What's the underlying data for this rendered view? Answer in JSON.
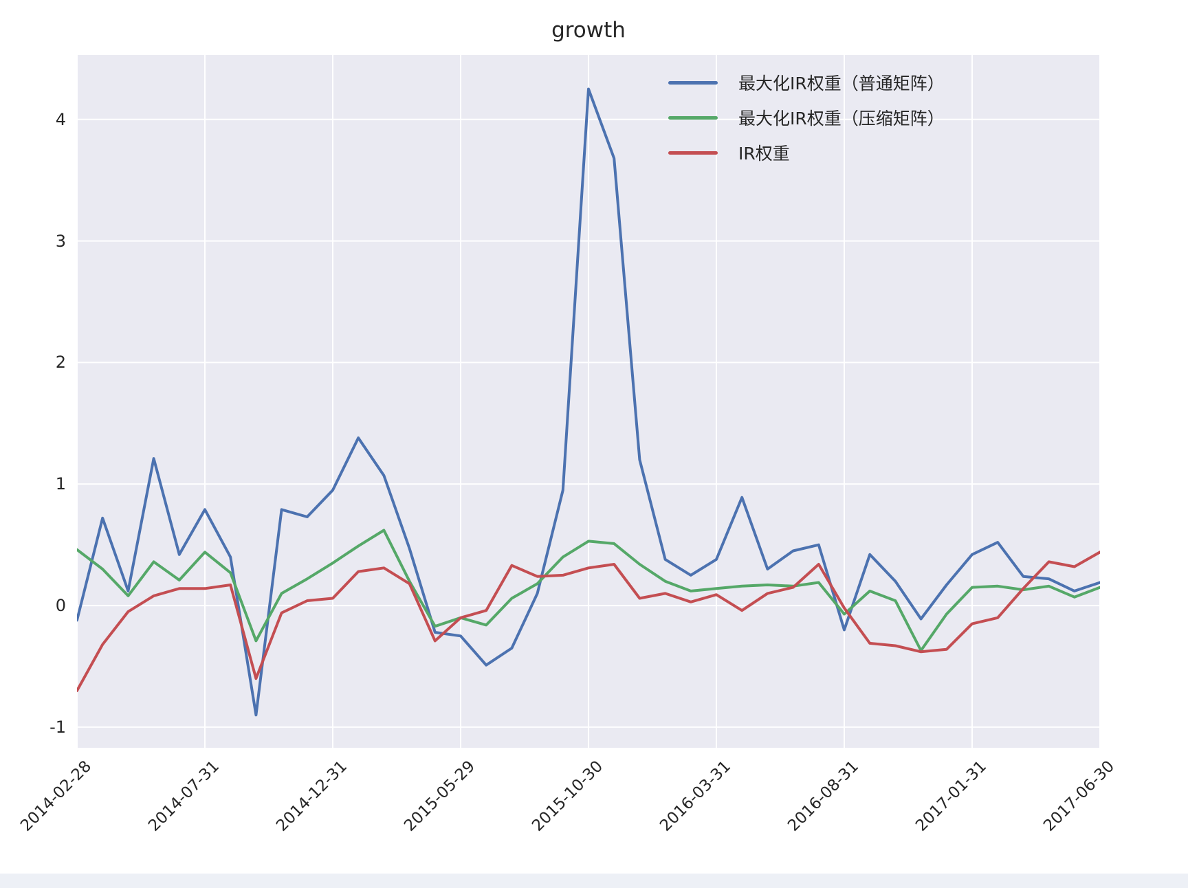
{
  "page": {
    "background": "#ffffff",
    "bottom_bar_color": "#edf0f6"
  },
  "chart_data": {
    "type": "line",
    "title": "growth",
    "plot_bg": "#EAEAF2",
    "grid": true,
    "grid_color": "#ffffff",
    "legend_position": "upper right",
    "ylim": [
      -1.17,
      4.53
    ],
    "y_ticks": [
      "-1",
      "0",
      "1",
      "2",
      "3",
      "4"
    ],
    "y_tick_values": [
      -1,
      0,
      1,
      2,
      3,
      4
    ],
    "x": [
      "2014-02-28",
      "2014-03-31",
      "2014-04-30",
      "2014-05-30",
      "2014-06-30",
      "2014-07-31",
      "2014-08-29",
      "2014-09-30",
      "2014-10-31",
      "2014-11-28",
      "2014-12-31",
      "2015-01-30",
      "2015-02-27",
      "2015-03-31",
      "2015-04-30",
      "2015-05-29",
      "2015-06-30",
      "2015-07-31",
      "2015-08-31",
      "2015-09-30",
      "2015-10-30",
      "2015-11-30",
      "2015-12-31",
      "2016-01-29",
      "2016-02-29",
      "2016-03-31",
      "2016-04-29",
      "2016-05-31",
      "2016-06-30",
      "2016-07-29",
      "2016-08-31",
      "2016-09-30",
      "2016-10-31",
      "2016-11-30",
      "2016-12-30",
      "2017-01-31",
      "2017-02-28",
      "2017-03-31",
      "2017-04-28",
      "2017-05-31",
      "2017-06-30"
    ],
    "x_tick_indices": [
      0,
      5,
      10,
      15,
      20,
      25,
      30,
      35,
      40
    ],
    "x_tick_labels": [
      "2014-02-28",
      "2014-07-31",
      "2014-12-31",
      "2015-05-29",
      "2015-10-30",
      "2016-03-31",
      "2016-08-31",
      "2017-01-31",
      "2017-06-30"
    ],
    "series": [
      {
        "name": "最大化IR权重（普通矩阵）",
        "color": "#4C72B0",
        "values": [
          -0.12,
          0.72,
          0.12,
          1.21,
          0.42,
          0.79,
          0.4,
          -0.9,
          0.79,
          0.73,
          0.95,
          1.38,
          1.07,
          0.47,
          -0.22,
          -0.25,
          -0.49,
          -0.35,
          0.1,
          0.95,
          4.25,
          3.68,
          1.2,
          0.38,
          0.25,
          0.38,
          0.89,
          0.3,
          0.45,
          0.5,
          -0.2,
          0.42,
          0.2,
          -0.11,
          0.17,
          0.42,
          0.52,
          0.24,
          0.22,
          0.12,
          0.19
        ]
      },
      {
        "name": "最大化IR权重（压缩矩阵）",
        "color": "#55A868",
        "values": [
          0.46,
          0.3,
          0.08,
          0.36,
          0.21,
          0.44,
          0.27,
          -0.29,
          0.1,
          0.22,
          0.35,
          0.49,
          0.62,
          0.2,
          -0.17,
          -0.1,
          -0.16,
          0.06,
          0.18,
          0.4,
          0.53,
          0.51,
          0.34,
          0.2,
          0.12,
          0.14,
          0.16,
          0.17,
          0.16,
          0.19,
          -0.07,
          0.12,
          0.04,
          -0.37,
          -0.07,
          0.15,
          0.16,
          0.13,
          0.16,
          0.07,
          0.15
        ]
      },
      {
        "name": "IR权重",
        "color": "#C44E52",
        "values": [
          -0.7,
          -0.32,
          -0.05,
          0.08,
          0.14,
          0.14,
          0.17,
          -0.6,
          -0.06,
          0.04,
          0.06,
          0.28,
          0.31,
          0.18,
          -0.29,
          -0.1,
          -0.04,
          0.33,
          0.24,
          0.25,
          0.31,
          0.34,
          0.06,
          0.1,
          0.03,
          0.09,
          -0.04,
          0.1,
          0.15,
          0.34,
          -0.02,
          -0.31,
          -0.33,
          -0.38,
          -0.36,
          -0.15,
          -0.1,
          0.14,
          0.36,
          0.32,
          0.44
        ]
      }
    ]
  }
}
